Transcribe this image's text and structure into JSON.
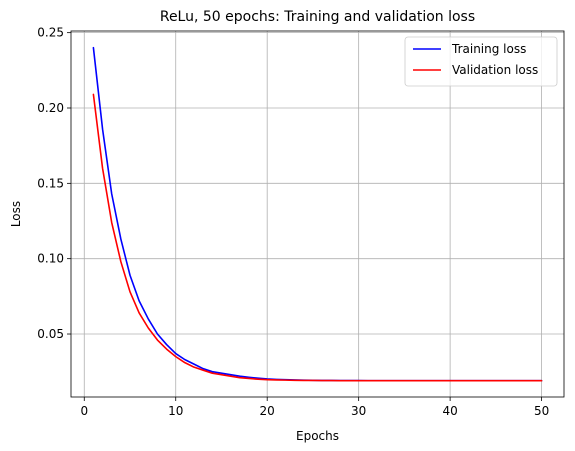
{
  "chart_data": {
    "type": "line",
    "title": "ReLu, 50 epochs: Training and validation loss",
    "xlabel": "Epochs",
    "ylabel": "Loss",
    "xlim": [
      -1.45,
      52.45
    ],
    "ylim": [
      0.0082,
      0.2511
    ],
    "xticks": [
      0,
      10,
      20,
      30,
      40,
      50
    ],
    "yticks": [
      0.05,
      0.1,
      0.15,
      0.2,
      0.25
    ],
    "ytick_labels": [
      "0.05",
      "0.10",
      "0.15",
      "0.20",
      "0.25"
    ],
    "grid": true,
    "legend_position": "top-right",
    "x": [
      1,
      2,
      3,
      4,
      5,
      6,
      7,
      8,
      9,
      10,
      11,
      12,
      13,
      14,
      15,
      16,
      17,
      18,
      19,
      20,
      21,
      22,
      23,
      24,
      25,
      26,
      27,
      28,
      29,
      30,
      31,
      32,
      33,
      34,
      35,
      36,
      37,
      38,
      39,
      40,
      41,
      42,
      43,
      44,
      45,
      46,
      47,
      48,
      49,
      50
    ],
    "series": [
      {
        "name": "Training loss",
        "color": "#0000ff",
        "values": [
          0.24,
          0.186,
          0.143,
          0.113,
          0.089,
          0.072,
          0.06,
          0.05,
          0.043,
          0.037,
          0.033,
          0.03,
          0.027,
          0.025,
          0.024,
          0.023,
          0.022,
          0.0213,
          0.0207,
          0.0202,
          0.0199,
          0.0197,
          0.0195,
          0.0194,
          0.0193,
          0.0192,
          0.0192,
          0.0191,
          0.0191,
          0.0191,
          0.019,
          0.019,
          0.019,
          0.019,
          0.019,
          0.019,
          0.019,
          0.019,
          0.019,
          0.019,
          0.019,
          0.019,
          0.019,
          0.019,
          0.019,
          0.019,
          0.019,
          0.019,
          0.019,
          0.019
        ]
      },
      {
        "name": "Validation loss",
        "color": "#ff0000",
        "values": [
          0.209,
          0.16,
          0.124,
          0.098,
          0.078,
          0.064,
          0.054,
          0.046,
          0.04,
          0.035,
          0.031,
          0.028,
          0.026,
          0.024,
          0.023,
          0.022,
          0.021,
          0.0205,
          0.02,
          0.0197,
          0.0195,
          0.0194,
          0.0193,
          0.0192,
          0.0192,
          0.0191,
          0.0191,
          0.019,
          0.019,
          0.019,
          0.019,
          0.019,
          0.019,
          0.019,
          0.019,
          0.019,
          0.019,
          0.019,
          0.019,
          0.019,
          0.019,
          0.019,
          0.019,
          0.019,
          0.019,
          0.019,
          0.019,
          0.019,
          0.019,
          0.019
        ]
      }
    ]
  }
}
